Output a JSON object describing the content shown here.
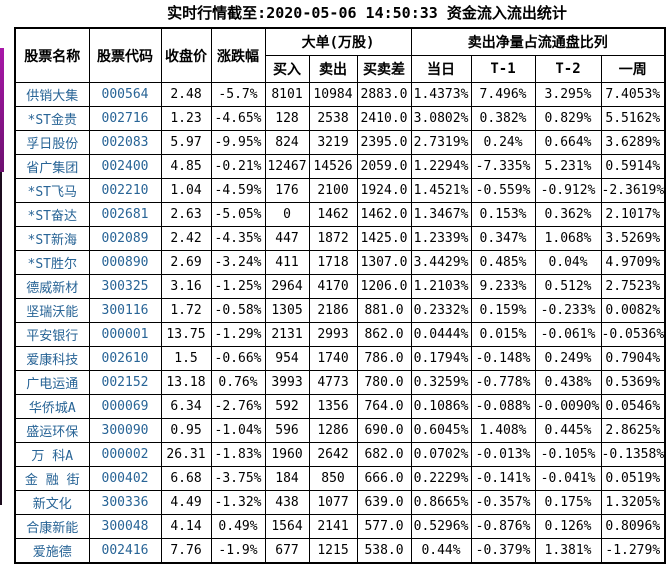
{
  "title": "实时行情截至:2020-05-06 14:50:33 资金流入流出统计",
  "colors": {
    "stock_link_blue": "#286496",
    "grid_line": "#000000",
    "edge_bar_magenta": "#a818a8"
  },
  "table": {
    "headers": {
      "name": "股票名称",
      "code": "股票代码",
      "close": "收盘价",
      "change": "涨跌幅",
      "big_orders_group": "大单(万股)",
      "buy": "买入",
      "sell": "卖出",
      "diff": "买卖差",
      "net_sell_group": "卖出净量占流通盘比列",
      "day": "当日",
      "t1": "T-1",
      "t2": "T-2",
      "week": "一周"
    },
    "columns": [
      "name",
      "code",
      "close",
      "change",
      "buy",
      "sell",
      "diff",
      "day",
      "t1",
      "t2",
      "week"
    ],
    "rows": [
      {
        "name": "供销大集",
        "code": "000564",
        "close": "2.48",
        "change": "-5.7%",
        "buy": "8101",
        "sell": "10984",
        "diff": "2883.0",
        "day": "1.4373%",
        "t1": "7.496%",
        "t2": "3.295%",
        "week": "7.4053%"
      },
      {
        "name": "*ST金贵",
        "code": "002716",
        "close": "1.23",
        "change": "-4.65%",
        "buy": "128",
        "sell": "2538",
        "diff": "2410.0",
        "day": "3.0802%",
        "t1": "0.382%",
        "t2": "0.829%",
        "week": "5.5162%"
      },
      {
        "name": "孚日股份",
        "code": "002083",
        "close": "5.97",
        "change": "-9.95%",
        "buy": "824",
        "sell": "3219",
        "diff": "2395.0",
        "day": "2.7319%",
        "t1": "0.24%",
        "t2": "0.664%",
        "week": "3.6289%"
      },
      {
        "name": "省广集团",
        "code": "002400",
        "close": "4.85",
        "change": "-0.21%",
        "buy": "12467",
        "sell": "14526",
        "diff": "2059.0",
        "day": "1.2294%",
        "t1": "-7.335%",
        "t2": "5.231%",
        "week": "0.5914%"
      },
      {
        "name": "*ST飞马",
        "code": "002210",
        "close": "1.04",
        "change": "-4.59%",
        "buy": "176",
        "sell": "2100",
        "diff": "1924.0",
        "day": "1.4521%",
        "t1": "-0.559%",
        "t2": "-0.912%",
        "week": "-2.3619%"
      },
      {
        "name": "*ST奋达",
        "code": "002681",
        "close": "2.63",
        "change": "-5.05%",
        "buy": "0",
        "sell": "1462",
        "diff": "1462.0",
        "day": "1.3467%",
        "t1": "0.153%",
        "t2": "0.362%",
        "week": "2.1017%"
      },
      {
        "name": "*ST新海",
        "code": "002089",
        "close": "2.42",
        "change": "-4.35%",
        "buy": "447",
        "sell": "1872",
        "diff": "1425.0",
        "day": "1.2339%",
        "t1": "0.347%",
        "t2": "1.068%",
        "week": "3.5269%"
      },
      {
        "name": "*ST胜尔",
        "code": "000890",
        "close": "2.69",
        "change": "-3.24%",
        "buy": "411",
        "sell": "1718",
        "diff": "1307.0",
        "day": "3.4429%",
        "t1": "0.485%",
        "t2": "0.04%",
        "week": "4.9709%"
      },
      {
        "name": "德威新材",
        "code": "300325",
        "close": "3.16",
        "change": "-1.25%",
        "buy": "2964",
        "sell": "4170",
        "diff": "1206.0",
        "day": "1.2103%",
        "t1": "9.233%",
        "t2": "0.512%",
        "week": "2.7523%"
      },
      {
        "name": "坚瑞沃能",
        "code": "300116",
        "close": "1.72",
        "change": "-0.58%",
        "buy": "1305",
        "sell": "2186",
        "diff": "881.0",
        "day": "0.2332%",
        "t1": "0.159%",
        "t2": "-0.233%",
        "week": "0.0082%"
      },
      {
        "name": "平安银行",
        "code": "000001",
        "close": "13.75",
        "change": "-1.29%",
        "buy": "2131",
        "sell": "2993",
        "diff": "862.0",
        "day": "0.0444%",
        "t1": "0.015%",
        "t2": "-0.061%",
        "week": "-0.0536%"
      },
      {
        "name": "爱康科技",
        "code": "002610",
        "close": "1.5",
        "change": "-0.66%",
        "buy": "954",
        "sell": "1740",
        "diff": "786.0",
        "day": "0.1794%",
        "t1": "-0.148%",
        "t2": "0.249%",
        "week": "0.7904%"
      },
      {
        "name": "广电运通",
        "code": "002152",
        "close": "13.18",
        "change": "0.76%",
        "buy": "3993",
        "sell": "4773",
        "diff": "780.0",
        "day": "0.3259%",
        "t1": "-0.778%",
        "t2": "0.438%",
        "week": "0.5369%"
      },
      {
        "name": "华侨城A",
        "code": "000069",
        "close": "6.34",
        "change": "-2.76%",
        "buy": "592",
        "sell": "1356",
        "diff": "764.0",
        "day": "0.1086%",
        "t1": "-0.088%",
        "t2": "-0.0090%",
        "week": "0.0546%"
      },
      {
        "name": "盛运环保",
        "code": "300090",
        "close": "0.95",
        "change": "-1.04%",
        "buy": "596",
        "sell": "1286",
        "diff": "690.0",
        "day": "0.6045%",
        "t1": "1.408%",
        "t2": "0.445%",
        "week": "2.8625%"
      },
      {
        "name": "万 科A",
        "code": "000002",
        "close": "26.31",
        "change": "-1.83%",
        "buy": "1960",
        "sell": "2642",
        "diff": "682.0",
        "day": "0.0702%",
        "t1": "-0.013%",
        "t2": "-0.105%",
        "week": "-0.1358%"
      },
      {
        "name": "金 融 街",
        "code": "000402",
        "close": "6.68",
        "change": "-3.75%",
        "buy": "184",
        "sell": "850",
        "diff": "666.0",
        "day": "0.2229%",
        "t1": "-0.141%",
        "t2": "-0.041%",
        "week": "0.0519%"
      },
      {
        "name": "新文化",
        "code": "300336",
        "close": "4.49",
        "change": "-1.32%",
        "buy": "438",
        "sell": "1077",
        "diff": "639.0",
        "day": "0.8665%",
        "t1": "-0.357%",
        "t2": "0.175%",
        "week": "1.3205%"
      },
      {
        "name": "合康新能",
        "code": "300048",
        "close": "4.14",
        "change": "0.49%",
        "buy": "1564",
        "sell": "2141",
        "diff": "577.0",
        "day": "0.5296%",
        "t1": "-0.876%",
        "t2": "0.126%",
        "week": "0.8096%"
      },
      {
        "name": "爱施德",
        "code": "002416",
        "close": "7.76",
        "change": "-1.9%",
        "buy": "677",
        "sell": "1215",
        "diff": "538.0",
        "day": "0.44%",
        "t1": "-0.379%",
        "t2": "1.381%",
        "week": "-1.279%"
      }
    ]
  }
}
